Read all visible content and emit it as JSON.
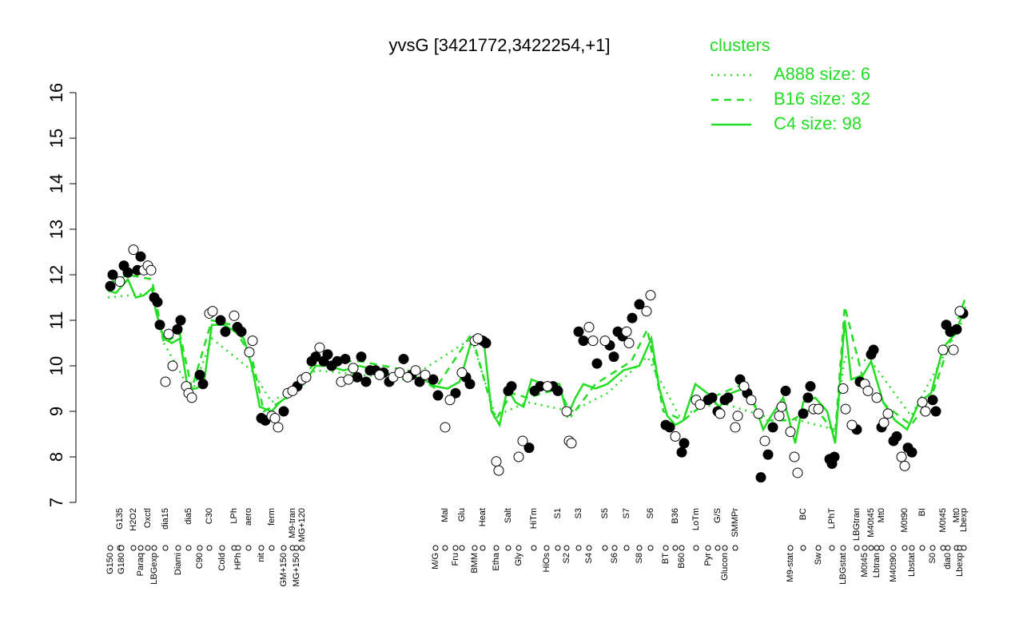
{
  "chart_data": {
    "type": "line",
    "title": "yvsG [3421772,3422254,+1]",
    "legend_title": "clusters",
    "legend_position": "topright",
    "color": "#22dd22",
    "point_color": "#000000",
    "ylim": [
      7,
      16
    ],
    "yticks": [
      7,
      8,
      9,
      10,
      11,
      12,
      13,
      14,
      15,
      16
    ],
    "xlim": [
      135,
      1210
    ],
    "xticks": [
      {
        "value": 138,
        "label": "G150"
      },
      {
        "value": 150,
        "label": "G135"
      },
      {
        "value": 152,
        "label": "G180"
      },
      {
        "value": 167,
        "label": "H2O2"
      },
      {
        "value": 176,
        "label": "Paraq"
      },
      {
        "value": 185,
        "label": "Oxctl"
      },
      {
        "value": 193,
        "label": "LBGexp"
      },
      {
        "value": 207,
        "label": "dia15"
      },
      {
        "value": 223,
        "label": "Diami"
      },
      {
        "value": 236,
        "label": "dia5"
      },
      {
        "value": 250,
        "label": "C90"
      },
      {
        "value": 262,
        "label": "C30"
      },
      {
        "value": 278,
        "label": "Cold"
      },
      {
        "value": 293,
        "label": "LPh"
      },
      {
        "value": 298,
        "label": "HPh"
      },
      {
        "value": 311,
        "label": "aero"
      },
      {
        "value": 327,
        "label": "nit"
      },
      {
        "value": 340,
        "label": "ferm"
      },
      {
        "value": 355,
        "label": "GM+150"
      },
      {
        "value": 366,
        "label": "M9-tran"
      },
      {
        "value": 371,
        "label": "MG+150"
      },
      {
        "value": 378,
        "label": "MG+120"
      },
      {
        "value": 545,
        "label": "M/G"
      },
      {
        "value": 557,
        "label": "Mal"
      },
      {
        "value": 570,
        "label": "Fru"
      },
      {
        "value": 578,
        "label": "Glu"
      },
      {
        "value": 594,
        "label": "BMM"
      },
      {
        "value": 604,
        "label": "Heat"
      },
      {
        "value": 621,
        "label": "Etha"
      },
      {
        "value": 636,
        "label": "Salt"
      },
      {
        "value": 649,
        "label": "Gly"
      },
      {
        "value": 668,
        "label": "HiTm"
      },
      {
        "value": 684,
        "label": "HiOs"
      },
      {
        "value": 698,
        "label": "S1"
      },
      {
        "value": 709,
        "label": "S2"
      },
      {
        "value": 724,
        "label": "S3"
      },
      {
        "value": 737,
        "label": "S4"
      },
      {
        "value": 757,
        "label": "S5"
      },
      {
        "value": 769,
        "label": "S6"
      },
      {
        "value": 784,
        "label": "S7"
      },
      {
        "value": 800,
        "label": "S8"
      },
      {
        "value": 814,
        "label": "S6"
      },
      {
        "value": 833,
        "label": "BT"
      },
      {
        "value": 845,
        "label": "B36"
      },
      {
        "value": 853,
        "label": "B60"
      },
      {
        "value": 871,
        "label": "LoTm"
      },
      {
        "value": 886,
        "label": "Pyr"
      },
      {
        "value": 898,
        "label": "G/S"
      },
      {
        "value": 907,
        "label": "Glucon"
      },
      {
        "value": 920,
        "label": "SMMPr"
      },
      {
        "value": 989,
        "label": "M9-stat"
      },
      {
        "value": 1005,
        "label": "BC"
      },
      {
        "value": 1024,
        "label": "Sw"
      },
      {
        "value": 1041,
        "label": "LPhT"
      },
      {
        "value": 1055,
        "label": "LBGstat"
      },
      {
        "value": 1072,
        "label": "LBGtran"
      },
      {
        "value": 1082,
        "label": "M0t45"
      },
      {
        "value": 1090,
        "label": "M40t45"
      },
      {
        "value": 1097,
        "label": "Lbtran"
      },
      {
        "value": 1103,
        "label": "Mt0"
      },
      {
        "value": 1118,
        "label": "M40t90"
      },
      {
        "value": 1132,
        "label": "M0t90"
      },
      {
        "value": 1141,
        "label": "Lbstat"
      },
      {
        "value": 1154,
        "label": "BI"
      },
      {
        "value": 1167,
        "label": "S0"
      },
      {
        "value": 1180,
        "label": "M0t45"
      },
      {
        "value": 1186,
        "label": "dia0"
      },
      {
        "value": 1197,
        "label": "Mt0"
      },
      {
        "value": 1201,
        "label": "Lbexp"
      },
      {
        "value": 1206,
        "label": "Lbexp"
      }
    ],
    "series": [
      {
        "name": "A888 size: 6",
        "dash": "2,6",
        "x": [
          135,
          190,
          205,
          240,
          265,
          315,
          340,
          395,
          510,
          590,
          620,
          660,
          715,
          760,
          810,
          850,
          900,
          955,
          1000,
          1045,
          1057,
          1090,
          1140,
          1208
        ],
        "values": [
          11.5,
          11.6,
          10.5,
          9.4,
          10.6,
          9.9,
          9.2,
          9.9,
          9.7,
          10.6,
          8.9,
          9.2,
          9.0,
          9.4,
          10.2,
          8.9,
          9.2,
          8.9,
          8.8,
          8.6,
          10.2,
          10.1,
          8.9,
          11.1
        ]
      },
      {
        "name": "B16 size: 32",
        "dash": "9,7",
        "x": [
          135,
          160,
          190,
          205,
          225,
          240,
          265,
          290,
          315,
          330,
          360,
          395,
          450,
          510,
          545,
          590,
          620,
          640,
          660,
          700,
          715,
          745,
          790,
          810,
          830,
          855,
          890,
          930,
          955,
          990,
          1020,
          1045,
          1057,
          1080,
          1110,
          1140,
          1165,
          1208
        ],
        "values": [
          11.8,
          12.0,
          11.9,
          10.5,
          10.7,
          9.5,
          11.0,
          10.9,
          10.2,
          9.0,
          9.3,
          10.1,
          10.1,
          9.9,
          9.5,
          10.7,
          8.8,
          9.4,
          9.3,
          9.5,
          8.9,
          9.6,
          10.1,
          10.8,
          9.0,
          8.8,
          9.3,
          9.6,
          8.8,
          8.8,
          9.1,
          8.5,
          11.3,
          9.7,
          9.1,
          8.7,
          9.3,
          11.5
        ]
      },
      {
        "name": "C4 size: 98",
        "dash": "none",
        "x": [
          135,
          145,
          160,
          170,
          180,
          190,
          195,
          205,
          215,
          225,
          235,
          245,
          255,
          265,
          280,
          290,
          305,
          315,
          325,
          340,
          350,
          365,
          380,
          395,
          410,
          430,
          450,
          470,
          490,
          510,
          530,
          545,
          560,
          575,
          590,
          605,
          615,
          625,
          635,
          645,
          655,
          665,
          680,
          700,
          710,
          720,
          730,
          745,
          760,
          780,
          800,
          815,
          825,
          835,
          845,
          855,
          870,
          885,
          900,
          915,
          930,
          945,
          955,
          965,
          980,
          995,
          1005,
          1020,
          1035,
          1045,
          1057,
          1065,
          1080,
          1090,
          1105,
          1120,
          1135,
          1150,
          1165,
          1180,
          1195,
          1208
        ],
        "values": [
          11.65,
          11.6,
          11.9,
          11.5,
          11.55,
          11.7,
          11.2,
          10.6,
          10.5,
          10.6,
          9.5,
          9.5,
          9.6,
          10.9,
          10.9,
          10.8,
          10.6,
          10.0,
          9.1,
          9.0,
          9.2,
          9.4,
          9.6,
          10.0,
          10.0,
          9.9,
          10.0,
          9.9,
          9.8,
          9.8,
          9.7,
          9.55,
          9.5,
          9.65,
          10.55,
          10.6,
          9.0,
          8.7,
          9.5,
          9.2,
          9.1,
          9.7,
          9.6,
          9.6,
          8.9,
          9.3,
          9.6,
          9.5,
          9.6,
          9.9,
          10.0,
          10.6,
          9.5,
          8.9,
          8.7,
          8.8,
          9.6,
          9.4,
          9.1,
          9.4,
          9.5,
          9.1,
          8.6,
          8.9,
          9.3,
          8.3,
          9.2,
          9.3,
          9.0,
          8.3,
          11.0,
          9.7,
          9.8,
          10.1,
          9.2,
          8.8,
          8.6,
          9.2,
          9.4,
          10.4,
          10.7,
          11.3
        ]
      }
    ],
    "filled_points": {
      "x": [
        138,
        141,
        155,
        160,
        172,
        176,
        193,
        197,
        200,
        222,
        226,
        250,
        254,
        276,
        282,
        297,
        302,
        327,
        332,
        355,
        372,
        390,
        395,
        405,
        410,
        415,
        422,
        432,
        447,
        452,
        458,
        463,
        470,
        480,
        487,
        505,
        515,
        525,
        542,
        548,
        570,
        583,
        588,
        604,
        608,
        636,
        640,
        662,
        669,
        676,
        692,
        698,
        724,
        730,
        747,
        763,
        768,
        773,
        779,
        791,
        800,
        833,
        838,
        853,
        856,
        886,
        891,
        898,
        907,
        911,
        926,
        935,
        952,
        961,
        967,
        983,
        1005,
        1011,
        1014,
        1038,
        1041,
        1044,
        1072,
        1076,
        1090,
        1093,
        1103,
        1118,
        1122,
        1136,
        1141,
        1167,
        1171,
        1184,
        1189,
        1197,
        1205
      ],
      "values": [
        11.75,
        12.0,
        12.2,
        12.05,
        12.1,
        12.4,
        11.5,
        11.4,
        10.9,
        10.8,
        11.0,
        9.8,
        9.6,
        11.0,
        10.75,
        10.85,
        10.75,
        8.85,
        8.8,
        9.0,
        9.55,
        10.1,
        10.2,
        10.1,
        10.25,
        10.0,
        10.1,
        10.15,
        9.75,
        10.2,
        9.65,
        9.9,
        9.9,
        9.85,
        9.65,
        10.15,
        9.8,
        9.65,
        9.7,
        9.35,
        9.4,
        9.75,
        9.6,
        10.55,
        10.5,
        9.45,
        9.55,
        8.2,
        9.45,
        9.55,
        9.55,
        9.45,
        10.75,
        10.55,
        10.05,
        10.45,
        10.2,
        10.75,
        10.65,
        11.05,
        11.35,
        8.7,
        8.65,
        8.1,
        8.3,
        9.25,
        9.3,
        9.0,
        9.25,
        9.3,
        9.7,
        9.4,
        7.55,
        8.05,
        8.65,
        9.45,
        8.95,
        9.3,
        9.55,
        7.95,
        7.85,
        8.0,
        8.6,
        9.65,
        10.25,
        10.35,
        8.65,
        8.35,
        8.45,
        8.2,
        8.1,
        9.25,
        9.0,
        10.9,
        10.75,
        10.8,
        11.15
      ]
    },
    "open_points": {
      "x": [
        150,
        167,
        180,
        185,
        189,
        207,
        211,
        216,
        233,
        236,
        240,
        262,
        266,
        293,
        312,
        316,
        340,
        344,
        348,
        360,
        366,
        378,
        383,
        400,
        427,
        436,
        442,
        475,
        492,
        500,
        510,
        520,
        532,
        557,
        563,
        578,
        594,
        598,
        621,
        624,
        649,
        654,
        685,
        709,
        712,
        715,
        737,
        742,
        757,
        784,
        787,
        809,
        814,
        845,
        871,
        876,
        901,
        920,
        923,
        931,
        940,
        949,
        957,
        975,
        978,
        989,
        994,
        998,
        1018,
        1024,
        1055,
        1058,
        1066,
        1082,
        1086,
        1097,
        1106,
        1111,
        1128,
        1132,
        1154,
        1158,
        1180,
        1193,
        1201
      ],
      "values": [
        11.85,
        12.55,
        12.1,
        12.2,
        12.1,
        9.65,
        10.7,
        10.0,
        9.55,
        9.4,
        9.3,
        11.15,
        11.2,
        11.1,
        10.3,
        10.55,
        8.9,
        8.85,
        8.65,
        9.4,
        9.45,
        9.7,
        9.75,
        10.4,
        9.65,
        9.7,
        9.95,
        9.8,
        9.75,
        9.85,
        9.75,
        9.9,
        9.8,
        8.65,
        9.25,
        9.85,
        10.55,
        10.6,
        7.9,
        7.7,
        8.0,
        8.35,
        9.55,
        9.0,
        8.35,
        8.3,
        10.85,
        10.55,
        10.55,
        10.75,
        10.5,
        11.2,
        11.55,
        8.45,
        9.25,
        9.15,
        8.95,
        8.65,
        8.9,
        9.55,
        9.25,
        8.95,
        8.35,
        8.9,
        9.1,
        8.55,
        8.0,
        7.65,
        9.05,
        9.05,
        9.5,
        9.05,
        8.7,
        9.6,
        9.45,
        9.3,
        8.75,
        8.95,
        8.0,
        7.8,
        9.2,
        9.0,
        10.35,
        10.35,
        11.2
      ]
    }
  }
}
